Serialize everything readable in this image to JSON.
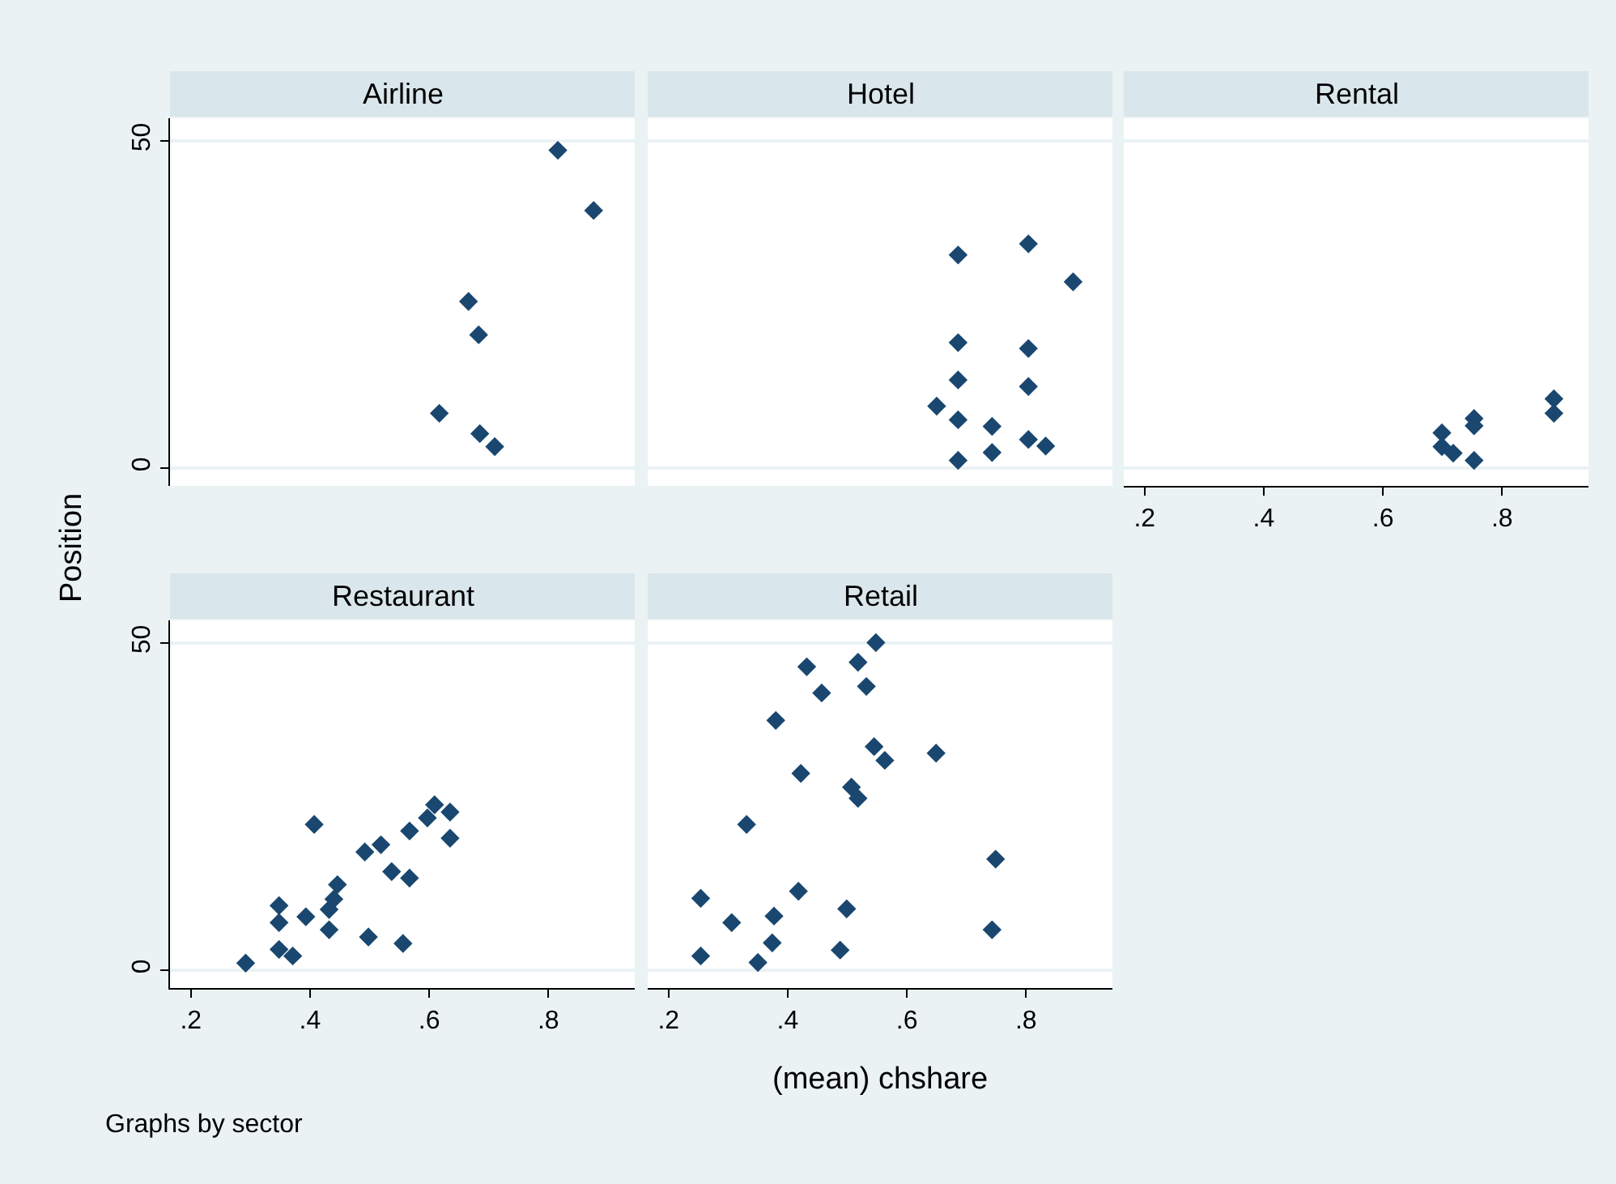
{
  "chart_data": [
    {
      "type": "scatter",
      "title": "Airline",
      "ylabel": "Position",
      "xlim": [
        0.165,
        0.945
      ],
      "ylim": [
        -2.7,
        53.5
      ],
      "yticks": [
        0,
        50
      ],
      "tick_labels": "y",
      "grid": "y",
      "marker": "diamond",
      "series": [
        {
          "color": "#1a476f",
          "x": [
            0.816,
            0.876,
            0.666,
            0.683,
            0.617,
            0.685,
            0.71
          ],
          "values": [
            48.6,
            39.4,
            25.5,
            20.4,
            8.4,
            5.3,
            3.3
          ]
        }
      ]
    },
    {
      "type": "scatter",
      "title": "Hotel",
      "xlim": [
        0.165,
        0.945
      ],
      "ylim": [
        -2.7,
        53.5
      ],
      "yticks": [
        0,
        50
      ],
      "tick_labels": false,
      "grid": "y",
      "marker": "diamond",
      "series": [
        {
          "color": "#1a476f",
          "x": [
            0.686,
            0.804,
            0.879,
            0.686,
            0.804,
            0.686,
            0.804,
            0.65,
            0.686,
            0.743,
            0.804,
            0.833,
            0.743,
            0.686
          ],
          "values": [
            32.6,
            34.3,
            28.5,
            19.2,
            18.3,
            13.5,
            12.5,
            9.5,
            7.4,
            6.4,
            4.4,
            3.4,
            2.4,
            1.2
          ]
        }
      ]
    },
    {
      "type": "scatter",
      "title": "Rental",
      "xlim": [
        0.165,
        0.945
      ],
      "ylim": [
        -2.7,
        53.5
      ],
      "xticks": [
        {
          "value": 0.2,
          "label": ".2"
        },
        {
          "value": 0.4,
          "label": ".4"
        },
        {
          "value": 0.6,
          "label": ".6"
        },
        {
          "value": 0.8,
          "label": ".8"
        }
      ],
      "yticks": [
        0,
        50
      ],
      "tick_labels": "x",
      "grid": "y",
      "marker": "diamond",
      "series": [
        {
          "color": "#1a476f",
          "x": [
            0.887,
            0.887,
            0.753,
            0.753,
            0.699,
            0.699,
            0.718,
            0.753
          ],
          "values": [
            10.6,
            8.4,
            7.6,
            6.5,
            5.4,
            3.3,
            2.3,
            1.2
          ]
        }
      ]
    },
    {
      "type": "scatter",
      "title": "Restaurant",
      "annotations": [
        "Graphs by sector"
      ],
      "xlim": [
        0.165,
        0.945
      ],
      "ylim": [
        -2.7,
        53.5
      ],
      "xticks": [
        {
          "value": 0.2,
          "label": ".2"
        },
        {
          "value": 0.4,
          "label": ".4"
        },
        {
          "value": 0.6,
          "label": ".6"
        },
        {
          "value": 0.8,
          "label": ".8"
        }
      ],
      "yticks": [
        0,
        50
      ],
      "grid": "y",
      "marker": "diamond",
      "series": [
        {
          "color": "#1a476f",
          "x": [
            0.292,
            0.348,
            0.348,
            0.348,
            0.371,
            0.407,
            0.393,
            0.432,
            0.44,
            0.446,
            0.432,
            0.492,
            0.519,
            0.498,
            0.537,
            0.567,
            0.556,
            0.567,
            0.597,
            0.609,
            0.635,
            0.635
          ],
          "values": [
            1.1,
            9.9,
            7.3,
            3.2,
            2.2,
            22.3,
            8.2,
            9.3,
            10.9,
            13.1,
            6.2,
            18.1,
            19.2,
            5.1,
            15.1,
            14.1,
            4.1,
            21.3,
            23.3,
            25.3,
            24.2,
            20.2
          ]
        }
      ]
    },
    {
      "type": "scatter",
      "title": "Retail",
      "xlabel": "(mean) chshare",
      "xlim": [
        0.165,
        0.945
      ],
      "ylim": [
        -2.7,
        53.5
      ],
      "xticks": [
        {
          "value": 0.2,
          "label": ".2"
        },
        {
          "value": 0.4,
          "label": ".4"
        },
        {
          "value": 0.6,
          "label": ".6"
        },
        {
          "value": 0.8,
          "label": ".8"
        }
      ],
      "yticks": [
        0,
        50
      ],
      "tick_labels": "x",
      "grid": "y",
      "marker": "diamond",
      "series": [
        {
          "color": "#1a476f",
          "x": [
            0.548,
            0.432,
            0.518,
            0.457,
            0.532,
            0.38,
            0.545,
            0.563,
            0.649,
            0.422,
            0.507,
            0.518,
            0.331,
            0.749,
            0.418,
            0.254,
            0.499,
            0.306,
            0.377,
            0.743,
            0.374,
            0.488,
            0.254,
            0.35
          ],
          "values": [
            50.1,
            46.4,
            47.1,
            42.4,
            43.4,
            38.2,
            34.2,
            32.1,
            33.2,
            30.1,
            28.0,
            26.3,
            22.3,
            17.0,
            12.1,
            11.0,
            9.4,
            7.3,
            8.3,
            6.2,
            4.2,
            3.1,
            2.2,
            1.2
          ]
        }
      ]
    }
  ]
}
